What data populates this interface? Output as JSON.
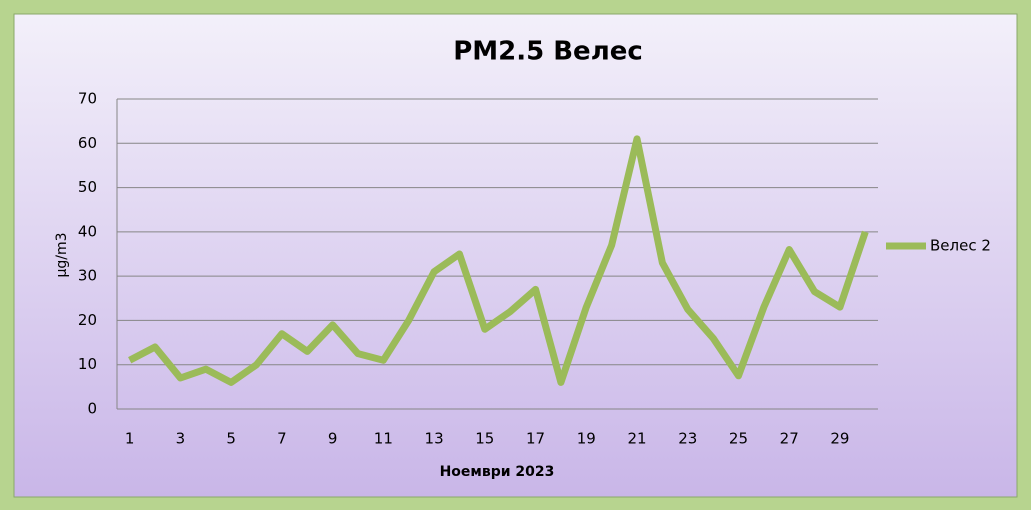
{
  "chart_data": {
    "type": "line",
    "title": "PM2.5 Велес",
    "xlabel": "Ноември 2023",
    "ylabel": "μg/m3",
    "categories": [
      1,
      null,
      3,
      null,
      5,
      null,
      7,
      null,
      9,
      null,
      11,
      null,
      13,
      null,
      15,
      null,
      17,
      null,
      19,
      null,
      21,
      null,
      23,
      null,
      25,
      null,
      27,
      null,
      29,
      null
    ],
    "series": [
      {
        "name": "Велес 2",
        "color": "#9bbb59",
        "values": [
          11,
          14,
          7,
          9,
          6,
          10,
          17,
          13,
          19,
          12.5,
          11,
          20,
          31,
          35,
          18,
          22,
          27,
          6,
          23,
          37,
          61,
          33,
          22.5,
          16,
          7.5,
          23,
          36,
          26.5,
          23,
          40
        ]
      }
    ],
    "ylim": [
      0,
      70
    ],
    "yticks": [
      0,
      10,
      20,
      30,
      40,
      50,
      60,
      70
    ],
    "grid": true,
    "legend": "right"
  }
}
